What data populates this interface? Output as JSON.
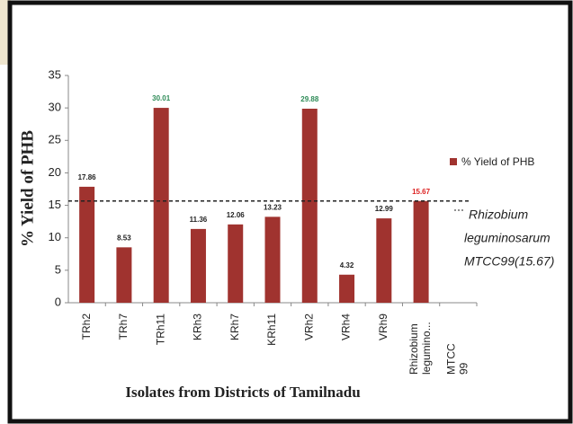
{
  "chart_data": {
    "type": "bar",
    "y_label": "% Yield of PHB",
    "x_label": "Isolates from Districts of Tamilnadu",
    "categories": [
      "TRh2",
      "TRh7",
      "TRh11",
      "KRh3",
      "KRh7",
      "KRh11",
      "VRh2",
      "VRh4",
      "VRh9",
      "Rhizobium legumino...",
      "MTCC 99"
    ],
    "series": [
      {
        "name": "% Yield of PHB",
        "color": "#a0332f",
        "values": [
          17.86,
          8.53,
          30.01,
          11.36,
          12.06,
          13.23,
          29.88,
          4.32,
          12.99,
          15.67,
          null
        ],
        "label_colors": [
          "#222",
          "#222",
          "#2e8b57",
          "#222",
          "#222",
          "#222",
          "#2e8b57",
          "#222",
          "#222",
          "#d22",
          null
        ]
      }
    ],
    "reference_line": {
      "name": [
        "Rhizobium",
        "leguminosarum",
        "MTCC99(15.67)"
      ],
      "value": 15.67,
      "color": "#222"
    },
    "ylim": [
      0,
      35
    ],
    "yticks": [
      0,
      5,
      10,
      15,
      20,
      25,
      30,
      35
    ],
    "grid": false
  }
}
